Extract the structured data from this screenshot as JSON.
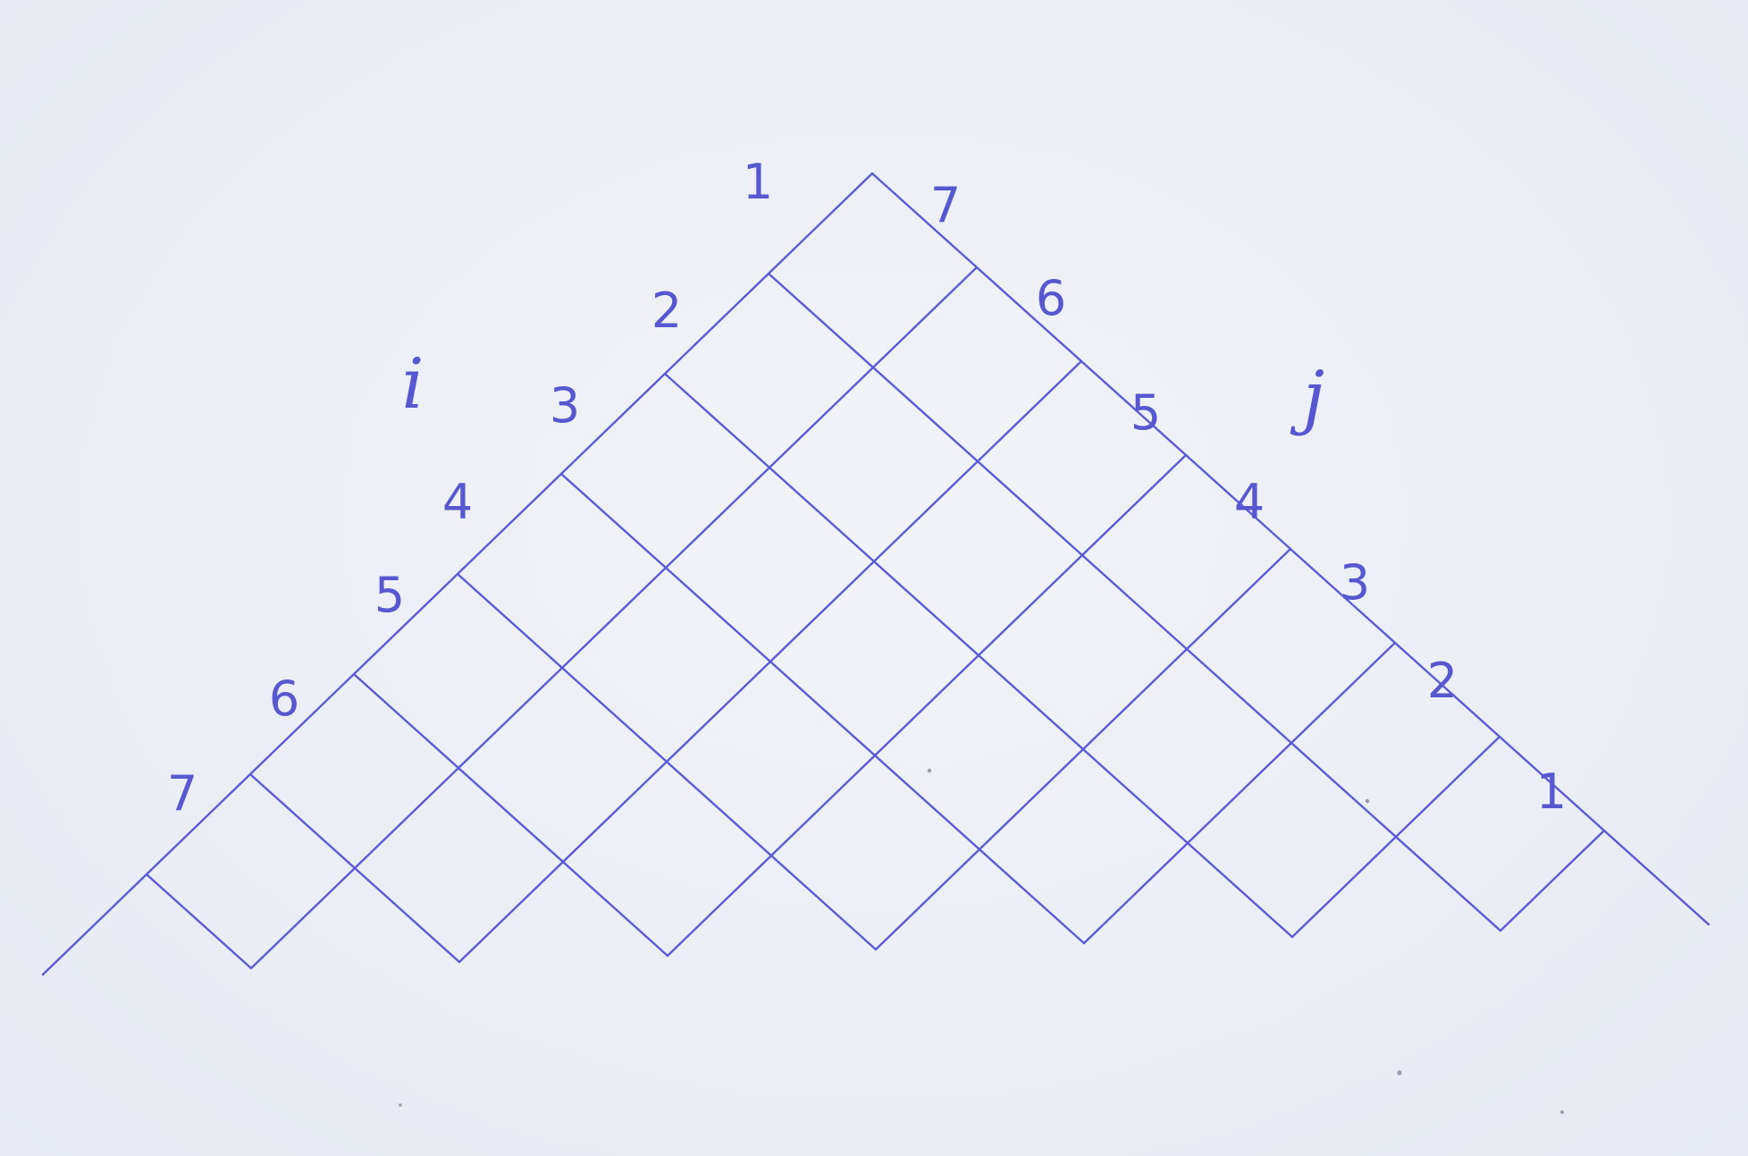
{
  "diagram": {
    "n": 7,
    "left_variable": "i",
    "right_variable": "j",
    "left_index_labels": [
      "1",
      "2",
      "3",
      "4",
      "5",
      "6",
      "7"
    ],
    "right_index_labels": [
      "7",
      "6",
      "5",
      "4",
      "3",
      "2",
      "1"
    ],
    "ink_color": "#5b5bd6",
    "paper_color": "#eceff5"
  }
}
